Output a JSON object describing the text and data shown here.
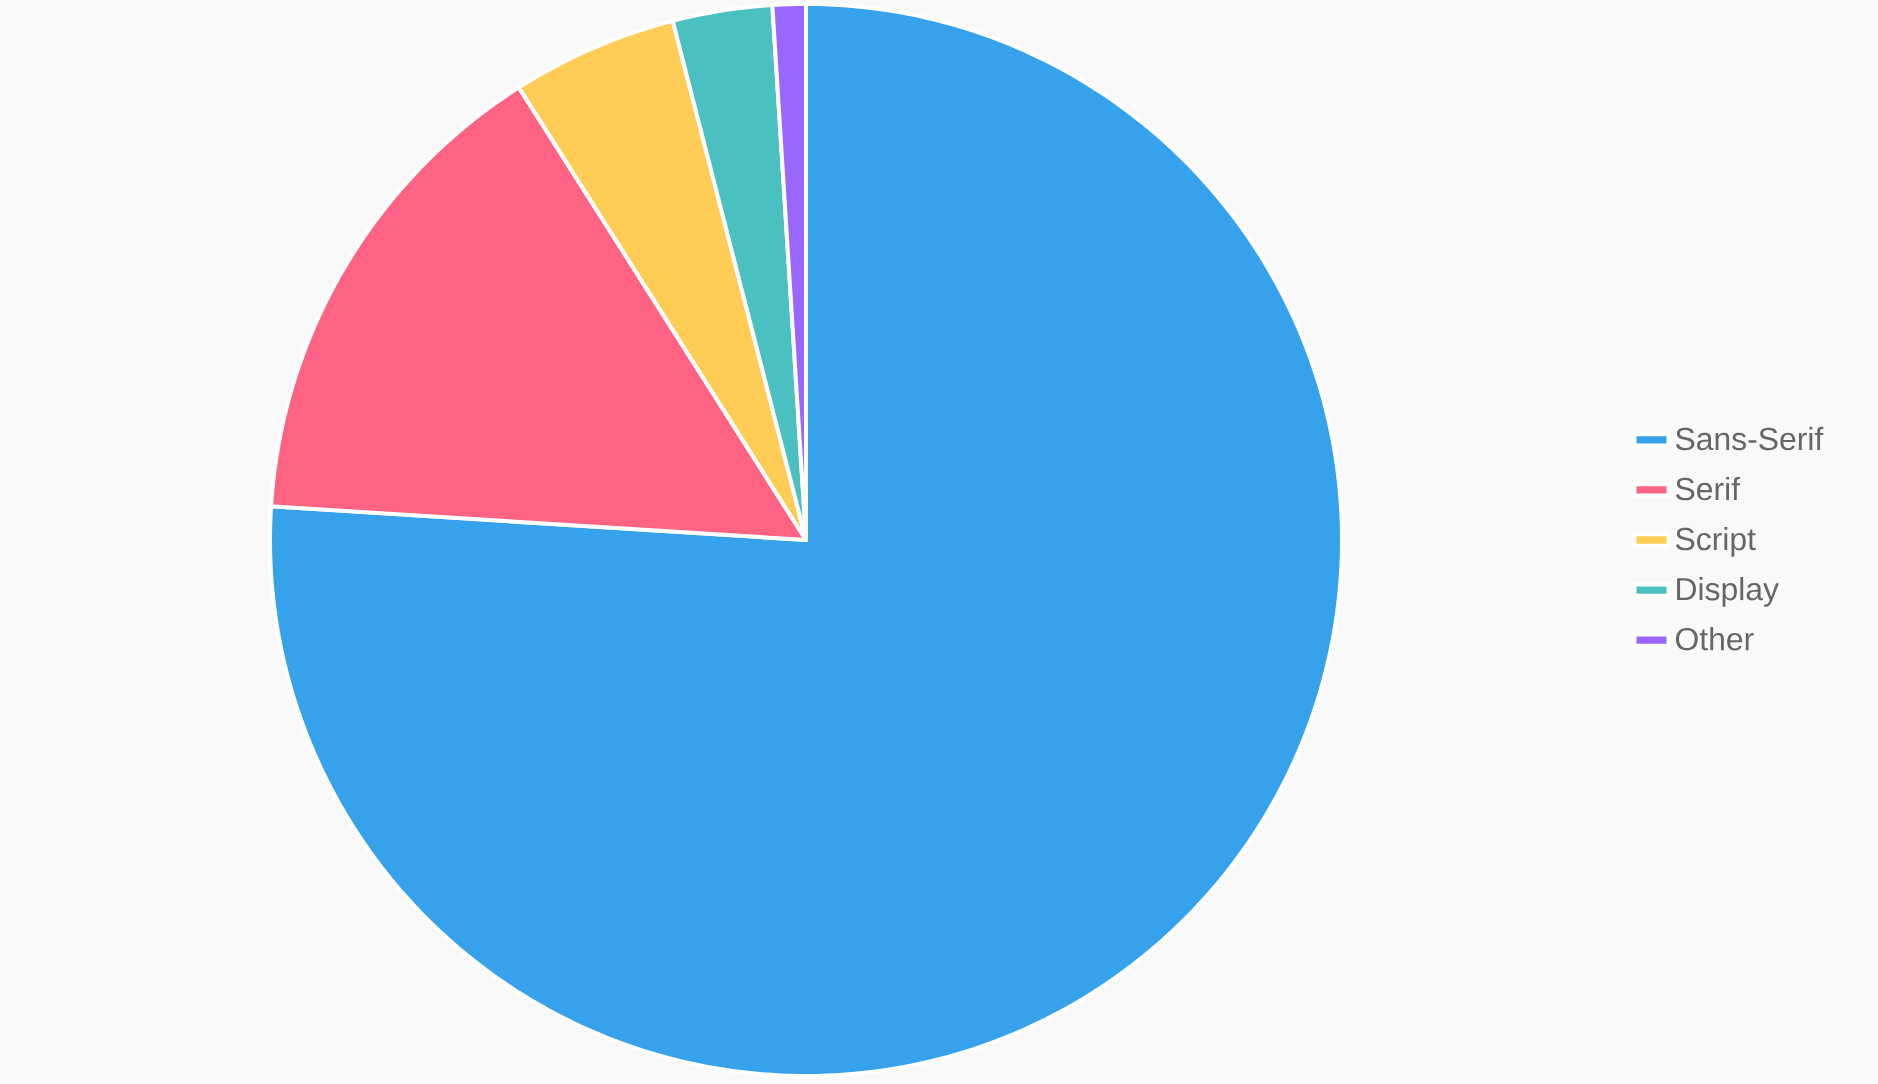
{
  "chart_data": {
    "type": "pie",
    "categories": [
      "Sans-Serif",
      "Serif",
      "Script",
      "Display",
      "Other"
    ],
    "values": [
      76,
      15,
      5,
      3,
      1
    ],
    "colors": [
      "#36a2eb",
      "#ff6384",
      "#ffcd56",
      "#4bc0c0",
      "#9966ff"
    ],
    "legend": "right"
  }
}
